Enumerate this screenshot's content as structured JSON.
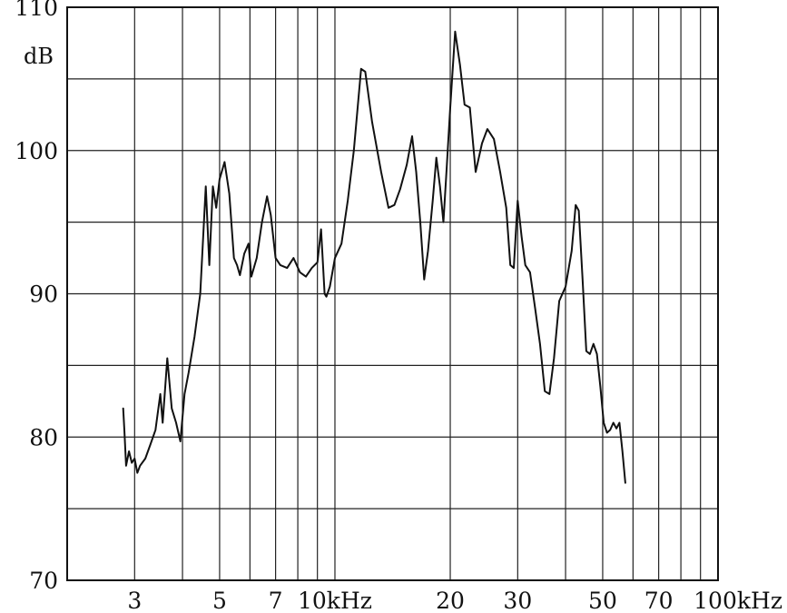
{
  "chart_data": {
    "type": "line",
    "title": "",
    "xlabel": "",
    "ylabel": "dB",
    "x_scale": "log",
    "xlim": [
      2000,
      100000
    ],
    "ylim": [
      70,
      110
    ],
    "grid": true,
    "y_ticks": [
      {
        "value": 110,
        "label": "110"
      },
      {
        "value": 100,
        "label": "100"
      },
      {
        "value": 90,
        "label": "90"
      },
      {
        "value": 80,
        "label": "80"
      },
      {
        "value": 70,
        "label": "70"
      }
    ],
    "y_gridlines": [
      75,
      80,
      85,
      90,
      95,
      100,
      105,
      110
    ],
    "x_ticks": [
      {
        "value": 3000,
        "label": "3"
      },
      {
        "value": 5000,
        "label": "5"
      },
      {
        "value": 7000,
        "label": "7"
      },
      {
        "value": 10000,
        "label": "10kHz"
      },
      {
        "value": 20000,
        "label": "20"
      },
      {
        "value": 30000,
        "label": "30"
      },
      {
        "value": 50000,
        "label": "50"
      },
      {
        "value": 70000,
        "label": "70"
      },
      {
        "value": 100000,
        "label": "100kHz"
      }
    ],
    "x_gridlines": [
      3000,
      4000,
      5000,
      6000,
      7000,
      8000,
      9000,
      10000,
      20000,
      30000,
      40000,
      50000,
      60000,
      70000,
      80000,
      90000,
      100000
    ],
    "series": [
      {
        "values": [
          [
            2800,
            82
          ],
          [
            2820,
            80.5
          ],
          [
            2850,
            78
          ],
          [
            2900,
            79
          ],
          [
            2950,
            78.2
          ],
          [
            3000,
            78.5
          ],
          [
            3050,
            77.5
          ],
          [
            3100,
            78
          ],
          [
            3200,
            78.5
          ],
          [
            3300,
            79.5
          ],
          [
            3400,
            80.5
          ],
          [
            3500,
            83
          ],
          [
            3550,
            81
          ],
          [
            3650,
            85.5
          ],
          [
            3750,
            82
          ],
          [
            3850,
            81
          ],
          [
            3950,
            79.7
          ],
          [
            4050,
            83
          ],
          [
            4150,
            84.5
          ],
          [
            4300,
            87
          ],
          [
            4450,
            90
          ],
          [
            4600,
            97.5
          ],
          [
            4700,
            92
          ],
          [
            4800,
            97.5
          ],
          [
            4900,
            96
          ],
          [
            5000,
            98
          ],
          [
            5150,
            99.2
          ],
          [
            5300,
            97
          ],
          [
            5450,
            92.5
          ],
          [
            5550,
            92
          ],
          [
            5650,
            91.3
          ],
          [
            5800,
            92.8
          ],
          [
            5950,
            93.5
          ],
          [
            6050,
            91.2
          ],
          [
            6250,
            92.5
          ],
          [
            6450,
            95
          ],
          [
            6650,
            96.8
          ],
          [
            6800,
            95.5
          ],
          [
            7000,
            92.5
          ],
          [
            7200,
            92
          ],
          [
            7500,
            91.8
          ],
          [
            7800,
            92.5
          ],
          [
            8100,
            91.5
          ],
          [
            8400,
            91.2
          ],
          [
            8700,
            91.8
          ],
          [
            9000,
            92.2
          ],
          [
            9200,
            94.5
          ],
          [
            9400,
            90
          ],
          [
            9500,
            89.8
          ],
          [
            9700,
            90.5
          ],
          [
            10000,
            92.5
          ],
          [
            10400,
            93.5
          ],
          [
            10800,
            96.5
          ],
          [
            11200,
            100
          ],
          [
            11700,
            105.7
          ],
          [
            12000,
            105.5
          ],
          [
            12500,
            102
          ],
          [
            13200,
            98.5
          ],
          [
            13800,
            96
          ],
          [
            14300,
            96.2
          ],
          [
            14800,
            97.3
          ],
          [
            15400,
            99
          ],
          [
            15900,
            101
          ],
          [
            16300,
            98.5
          ],
          [
            16700,
            95
          ],
          [
            17100,
            91
          ],
          [
            17500,
            93
          ],
          [
            18000,
            96.5
          ],
          [
            18400,
            99.5
          ],
          [
            18800,
            97.5
          ],
          [
            19200,
            95
          ],
          [
            19600,
            99
          ],
          [
            20000,
            103
          ],
          [
            20600,
            108.3
          ],
          [
            21200,
            106
          ],
          [
            21800,
            103.2
          ],
          [
            22500,
            103
          ],
          [
            23300,
            98.5
          ],
          [
            24200,
            100.5
          ],
          [
            25000,
            101.5
          ],
          [
            26000,
            100.8
          ],
          [
            27000,
            98.5
          ],
          [
            28000,
            96
          ],
          [
            28700,
            92
          ],
          [
            29300,
            91.8
          ],
          [
            30000,
            96.5
          ],
          [
            30700,
            94
          ],
          [
            31400,
            92
          ],
          [
            32300,
            91.5
          ],
          [
            33300,
            89
          ],
          [
            34300,
            86.5
          ],
          [
            35300,
            83.2
          ],
          [
            36300,
            83
          ],
          [
            37300,
            85.5
          ],
          [
            38500,
            89.5
          ],
          [
            40000,
            90.5
          ],
          [
            41500,
            93
          ],
          [
            42500,
            96.2
          ],
          [
            43300,
            95.8
          ],
          [
            44300,
            91
          ],
          [
            45300,
            86
          ],
          [
            46300,
            85.8
          ],
          [
            47300,
            86.5
          ],
          [
            48300,
            85.8
          ],
          [
            49300,
            83.5
          ],
          [
            50300,
            81
          ],
          [
            51300,
            80.3
          ],
          [
            52300,
            80.5
          ],
          [
            53300,
            81
          ],
          [
            54300,
            80.6
          ],
          [
            55300,
            81
          ],
          [
            56300,
            79
          ],
          [
            57300,
            76.8
          ]
        ]
      }
    ]
  }
}
